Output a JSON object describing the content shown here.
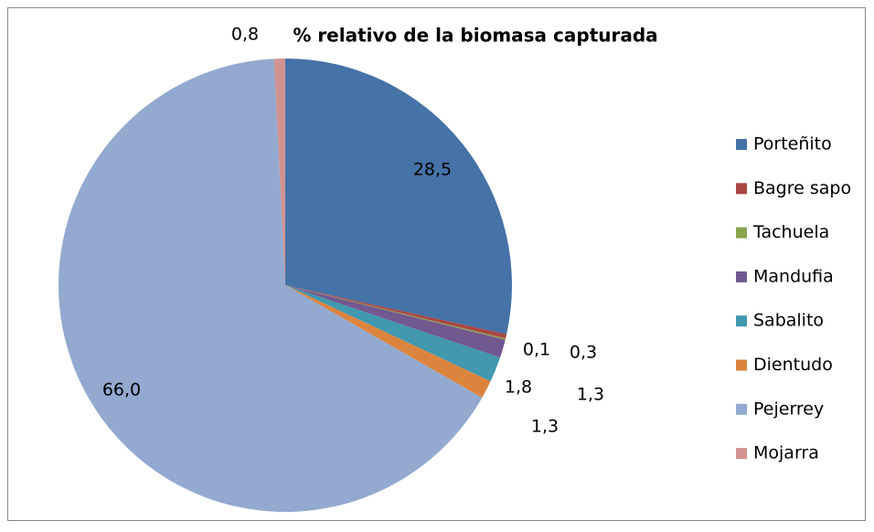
{
  "chart_data": {
    "type": "pie",
    "title": "% relativo de la biomasa capturada",
    "categories": [
      "Porteñito",
      "Bagre sapo",
      "Tachuela",
      "Mandufia",
      "Sabalito",
      "Dientudo",
      "Pejerrey",
      "Mojarra"
    ],
    "values": [
      28.5,
      0.3,
      0.1,
      1.3,
      1.8,
      1.3,
      66.0,
      0.8
    ],
    "value_labels": [
      "28,5",
      "0,3",
      "0,1",
      "1,3",
      "1,8",
      "1,3",
      "66,0",
      "0,8"
    ],
    "colors": [
      "#4572a7",
      "#aa4643",
      "#89a54e",
      "#71588f",
      "#4198af",
      "#db843d",
      "#93a9cf",
      "#d19392"
    ],
    "legend": "right"
  }
}
